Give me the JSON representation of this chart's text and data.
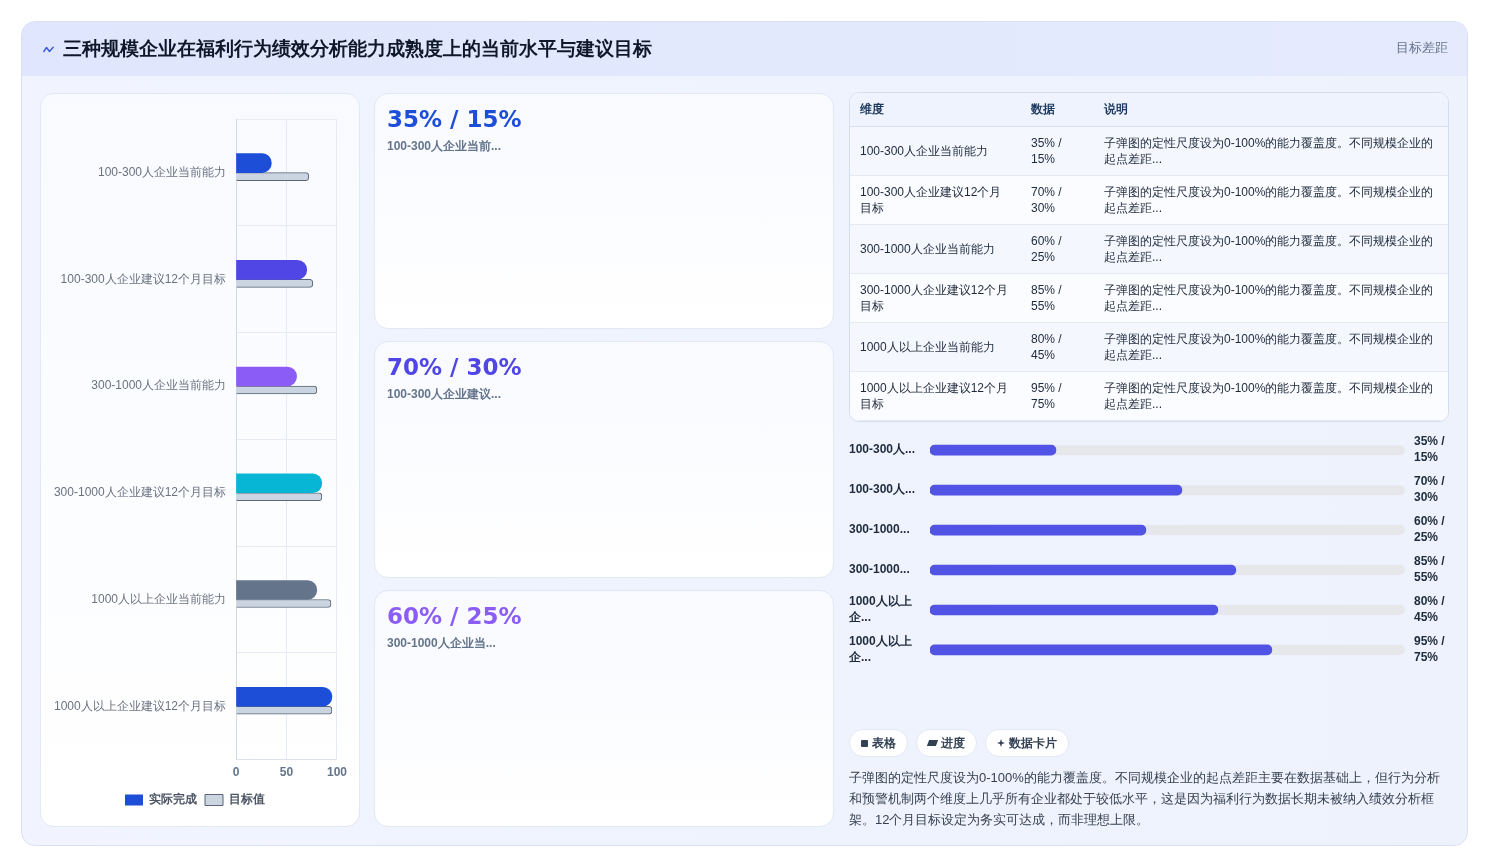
{
  "chart_data": [
    {
      "type": "bar",
      "title": "三种规模企业在福利行为绩效分析能力成熟度上的当前水平与建议目标",
      "orientation": "horizontal",
      "categories": [
        "100-300人企业当前能力",
        "100-300人企业建议12个月目标",
        "300-1000人企业当前能力",
        "300-1000人企业建议12个月目标",
        "1000人以上企业当前能力",
        "1000人以上企业建议12个月目标"
      ],
      "series": [
        {
          "name": "实际完成",
          "color": "#1d4ed8",
          "colors": [
            "#1d4ed8",
            "#4f46e5",
            "#8b5cf6",
            "#06b6d4",
            "#64748b",
            "#1d4ed8"
          ],
          "values": [
            35,
            70,
            60,
            85,
            80,
            95
          ]
        },
        {
          "name": "目标值",
          "color": "#cbd5e1",
          "values": [
            72,
            76,
            80,
            85,
            94,
            95
          ]
        }
      ],
      "xlim": [
        0,
        100
      ],
      "xticks": [
        0,
        50,
        100
      ],
      "grid": true,
      "legend": "bottom"
    },
    {
      "type": "other",
      "title": "35% / 15%",
      "subtitle": "100-300人企业当前...",
      "color": "#1d4ed8"
    },
    {
      "type": "other",
      "title": "70% / 30%",
      "subtitle": "100-300人企业建议...",
      "color": "#4f46e5"
    },
    {
      "type": "other",
      "title": "60% / 25%",
      "subtitle": "300-1000人企业当...",
      "color": "#8b5cf6"
    },
    {
      "type": "other",
      "subtitle": "目标差距",
      "categories": [
        "维度",
        "数据",
        "说明"
      ],
      "annotations": [
        "100-300人企业当前能力",
        "35% / 15%",
        "子弹图的定性尺度设为0-100%的能力覆盖度。不同规模企业的起点差距...",
        "100-300人企业建议12个月目标",
        "70% / 30%",
        "子弹图的定性尺度设为0-100%的能力覆盖度。不同规模企业的起点差距...",
        "300-1000人企业当前能力",
        "60% / 25%",
        "子弹图的定性尺度设为0-100%的能力覆盖度。不同规模企业的起点差距...",
        "300-1000人企业建议12个月目标",
        "85% / 55%",
        "子弹图的定性尺度设为0-100%的能力覆盖度。不同规模企业的起点差距...",
        "1000人以上企业当前能力",
        "80% / 45%",
        "子弹图的定性尺度设为0-100%的能力覆盖度。不同规模企业的起点差距...",
        "1000人以上企业建议12个月目标",
        "95% / 75%",
        "子弹图的定性尺度设为0-100%的能力覆盖度。不同规模企业的起点差距..."
      ]
    },
    {
      "type": "bar",
      "orientation": "horizontal",
      "categories": [
        "100-300人...",
        "100-300人...",
        "300-1000...",
        "300-1000...",
        "1000人以上企...",
        "1000人以上企..."
      ],
      "values": [
        35,
        70,
        60,
        85,
        80,
        95
      ],
      "value_labels": [
        "35% / 15%",
        "70% / 30%",
        "60% / 25%",
        "85% / 55%",
        "80% / 45%",
        "95% / 75%"
      ],
      "color": "#5053e3",
      "xlim": [
        0,
        132
      ],
      "tick_labels": "y"
    },
    {
      "type": "other",
      "categories": [
        "表格",
        "进度",
        "数据卡片"
      ],
      "annotations": [
        "子弹图的定性尺度设为0-100%的能力覆盖度。不同规模企业的起点差距主要在数据基础上，但行为分析和预警机制两个维度上几乎所有企业都处于较低水平，这是因为福利行为数据长期未被纳入绩效分析框架。12个月目标设定为务实可达成，而非理想上限。"
      ]
    }
  ]
}
